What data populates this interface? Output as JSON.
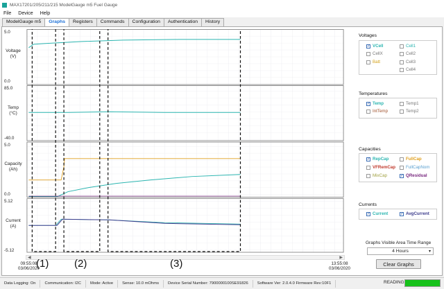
{
  "window": {
    "title": "MAX17201/205/211/215 ModelGauge m5 Fuel Gauge"
  },
  "menu": [
    "File",
    "Device",
    "Help"
  ],
  "tabs": [
    "ModelGauge m5",
    "Graphs",
    "Registers",
    "Commands",
    "Configuration",
    "Authentication",
    "History"
  ],
  "active_tab": "Graphs",
  "plots": {
    "voltage": {
      "label": "Voltage",
      "unit": "(V)",
      "ymax": "5.0",
      "ymin": "0.0"
    },
    "temp": {
      "label": "Temp",
      "unit": "(°C)",
      "ymax": "85.0",
      "ymin": "-40.0"
    },
    "capacity": {
      "label": "Capacity",
      "unit": "(Ah)",
      "ymax": "5.0",
      "ymin": "0.0"
    },
    "current": {
      "label": "Current",
      "unit": "(A)",
      "ymax": "5.12",
      "ymin": "-5.12"
    }
  },
  "timestamps": {
    "start_time": "09:55:08",
    "start_date": "03/06/2020",
    "end_time": "13:55:08",
    "end_date": "03/06/2020"
  },
  "regions": [
    "(1)",
    "(2)",
    "(3)"
  ],
  "sidebar": {
    "voltages": {
      "title": "Voltages",
      "items": [
        {
          "label": "VCell",
          "checked": true,
          "color": "#2bb5b0"
        },
        {
          "label": "Cell1",
          "checked": false,
          "color": "#2bb5b0"
        },
        {
          "label": "CellX",
          "checked": false,
          "color": "#777777"
        },
        {
          "label": "Cell2",
          "checked": false,
          "color": "#777777"
        },
        {
          "label": "Batt",
          "checked": false,
          "color": "#d4a017"
        },
        {
          "label": "Cell3",
          "checked": false,
          "color": "#777777"
        },
        {
          "label": "Cell4",
          "checked": false,
          "color": "#777777"
        }
      ]
    },
    "temperatures": {
      "title": "Temperatures",
      "items": [
        {
          "label": "Temp",
          "checked": true,
          "color": "#2bb5b0"
        },
        {
          "label": "Temp1",
          "checked": false,
          "color": "#777777"
        },
        {
          "label": "IntTemp",
          "checked": false,
          "color": "#a0522d"
        },
        {
          "label": "Temp2",
          "checked": false,
          "color": "#777777"
        }
      ]
    },
    "capacities": {
      "title": "Capacities",
      "items": [
        {
          "label": "RepCap",
          "checked": true,
          "color": "#2bb5b0"
        },
        {
          "label": "FullCap",
          "checked": false,
          "color": "#e0a020"
        },
        {
          "label": "VFRemCap",
          "checked": false,
          "color": "#c0392b"
        },
        {
          "label": "FullCapNom",
          "checked": false,
          "color": "#5aa0d0"
        },
        {
          "label": "MixCap",
          "checked": false,
          "color": "#a0a040"
        },
        {
          "label": "QResidual",
          "checked": true,
          "color": "#7a2a80"
        }
      ]
    },
    "currents": {
      "title": "Currents",
      "items": [
        {
          "label": "Current",
          "checked": true,
          "color": "#2bb5b0"
        },
        {
          "label": "AvgCurrent",
          "checked": true,
          "color": "#3c3c8c"
        }
      ]
    }
  },
  "time_range": {
    "title": "Graphs Visible Area Time Range",
    "value": "4 Hours"
  },
  "clear_button": "Clear Graphs",
  "status": [
    "Data Logging: On",
    "Communication: I2C",
    "Mode: Active",
    "Sense: 10.0 mOhms",
    "Device Serial Number: 7900000100SE91826",
    "Software Ver: 2.0.4.0  Firmware Rev:10F1"
  ],
  "reading_label": "READING",
  "reading_progress": 1.0
}
